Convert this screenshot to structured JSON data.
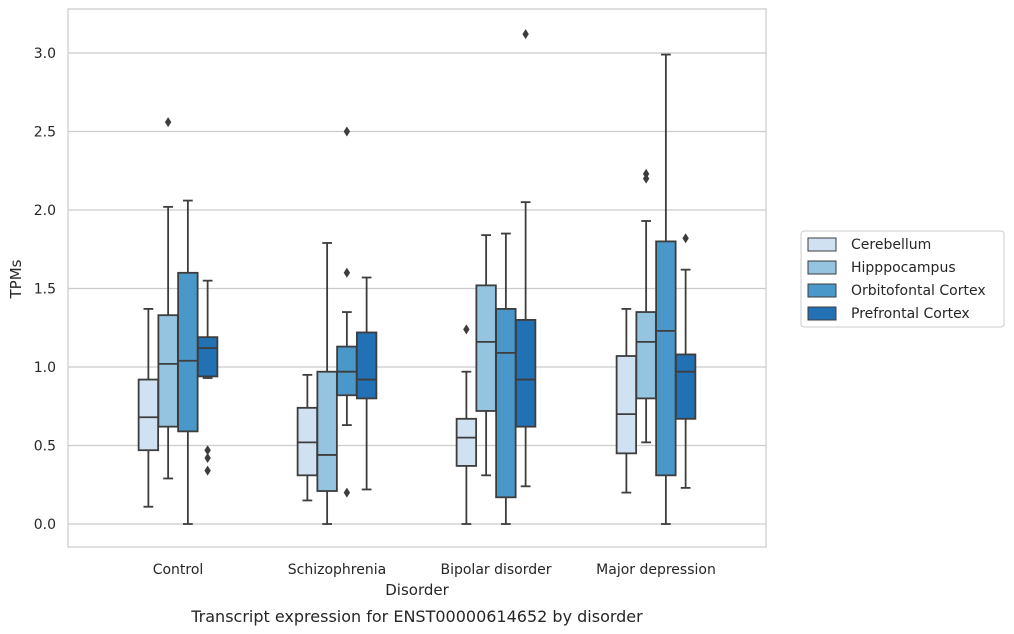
{
  "chart_data": {
    "type": "box",
    "caption": "Transcript expression for ENST00000614652 by disorder",
    "xlabel": "Disorder",
    "ylabel": "TPMs",
    "ylim": [
      -0.15,
      3.28
    ],
    "yticks": [
      0.0,
      0.5,
      1.0,
      1.5,
      2.0,
      2.5,
      3.0
    ],
    "ytick_labels": [
      "0.0",
      "0.5",
      "1.0",
      "1.5",
      "2.0",
      "2.5",
      "3.0"
    ],
    "grid": "horizontal",
    "legend_position": "right",
    "categories": [
      "Control",
      "Schizophrenia",
      "Bipolar disorder",
      "Major depression"
    ],
    "series": [
      {
        "name": "Cerebellum",
        "color": "#d0e1f2",
        "boxes": [
          {
            "whislo": 0.11,
            "q1": 0.47,
            "med": 0.68,
            "q3": 0.92,
            "whishi": 1.37,
            "fliers": []
          },
          {
            "whislo": 0.15,
            "q1": 0.31,
            "med": 0.52,
            "q3": 0.74,
            "whishi": 0.95,
            "fliers": []
          },
          {
            "whislo": 0.0,
            "q1": 0.37,
            "med": 0.55,
            "q3": 0.67,
            "whishi": 0.97,
            "fliers": [
              1.24
            ]
          },
          {
            "whislo": 0.2,
            "q1": 0.45,
            "med": 0.7,
            "q3": 1.07,
            "whishi": 1.37,
            "fliers": []
          }
        ]
      },
      {
        "name": "Hipppocampus",
        "color": "#94c4df",
        "boxes": [
          {
            "whislo": 0.29,
            "q1": 0.62,
            "med": 1.02,
            "q3": 1.33,
            "whishi": 2.02,
            "fliers": [
              2.56
            ]
          },
          {
            "whislo": 0.0,
            "q1": 0.21,
            "med": 0.44,
            "q3": 0.97,
            "whishi": 1.79,
            "fliers": []
          },
          {
            "whislo": 0.31,
            "q1": 0.72,
            "med": 1.16,
            "q3": 1.52,
            "whishi": 1.84,
            "fliers": []
          },
          {
            "whislo": 0.52,
            "q1": 0.8,
            "med": 1.16,
            "q3": 1.35,
            "whishi": 1.93,
            "fliers": [
              2.2,
              2.23
            ]
          }
        ]
      },
      {
        "name": "Orbitofontal Cortex",
        "color": "#4a98c9",
        "boxes": [
          {
            "whislo": 0.0,
            "q1": 0.59,
            "med": 1.04,
            "q3": 1.6,
            "whishi": 2.06,
            "fliers": []
          },
          {
            "whislo": 0.63,
            "q1": 0.82,
            "med": 0.97,
            "q3": 1.13,
            "whishi": 1.35,
            "fliers": [
              0.2,
              1.6,
              2.5
            ]
          },
          {
            "whislo": 0.0,
            "q1": 0.17,
            "med": 1.09,
            "q3": 1.37,
            "whishi": 1.85,
            "fliers": []
          },
          {
            "whislo": 0.0,
            "q1": 0.31,
            "med": 1.23,
            "q3": 1.8,
            "whishi": 2.99,
            "fliers": []
          }
        ]
      },
      {
        "name": "Prefrontal Cortex",
        "color": "#2271b5",
        "boxes": [
          {
            "whislo": 0.93,
            "q1": 0.94,
            "med": 1.12,
            "q3": 1.19,
            "whishi": 1.55,
            "fliers": [
              0.34,
              0.42,
              0.47
            ]
          },
          {
            "whislo": 0.22,
            "q1": 0.8,
            "med": 0.92,
            "q3": 1.22,
            "whishi": 1.57,
            "fliers": []
          },
          {
            "whislo": 0.24,
            "q1": 0.62,
            "med": 0.92,
            "q3": 1.3,
            "whishi": 2.05,
            "fliers": [
              3.12
            ]
          },
          {
            "whislo": 0.23,
            "q1": 0.67,
            "med": 0.97,
            "q3": 1.08,
            "whishi": 1.62,
            "fliers": [
              1.82
            ]
          }
        ]
      }
    ]
  }
}
